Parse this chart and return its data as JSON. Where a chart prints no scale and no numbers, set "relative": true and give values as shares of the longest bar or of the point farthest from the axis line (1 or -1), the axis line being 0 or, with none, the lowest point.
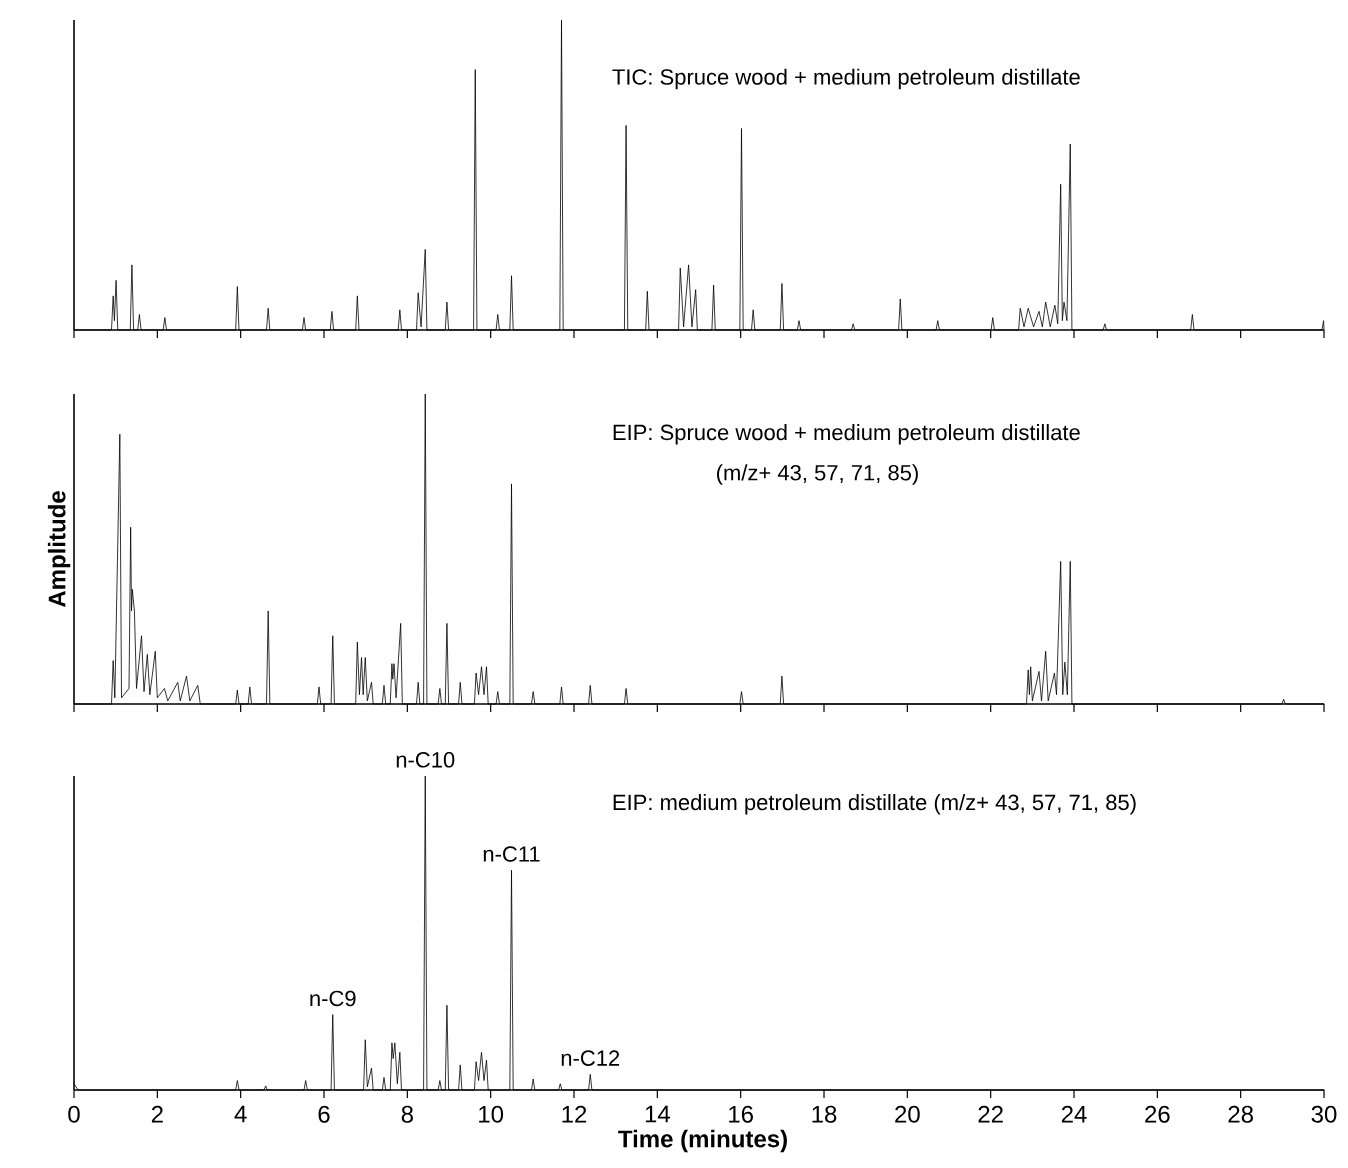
{
  "chart_data": [
    {
      "type": "line",
      "relative": true,
      "title": "TIC: Spruce wood + medium petroleum distillate",
      "xlim": [
        0,
        30
      ],
      "xticks": [
        0,
        2,
        4,
        6,
        8,
        10,
        12,
        14,
        16,
        18,
        20,
        22,
        24,
        26,
        28,
        30
      ],
      "tick_labels": false,
      "series": [
        {
          "color": "#000000",
          "x": [
            0,
            0.9,
            0.94,
            0.97,
            1.01,
            1.05,
            1.35,
            1.39,
            1.43,
            1.53,
            1.57,
            1.61,
            2.14,
            2.18,
            2.22,
            3.88,
            3.92,
            3.96,
            4.62,
            4.66,
            4.7,
            5.48,
            5.52,
            5.56,
            6.15,
            6.19,
            6.23,
            6.76,
            6.8,
            6.84,
            7.78,
            7.82,
            7.86,
            8.22,
            8.26,
            8.33,
            8.43,
            8.47,
            8.91,
            8.95,
            8.99,
            9.59,
            9.63,
            9.67,
            10.13,
            10.17,
            10.21,
            10.46,
            10.5,
            10.54,
            11.66,
            11.7,
            11.74,
            13.21,
            13.25,
            13.29,
            13.72,
            13.76,
            13.8,
            14.51,
            14.55,
            14.63,
            14.75,
            14.83,
            14.92,
            14.96,
            15.31,
            15.35,
            15.39,
            15.98,
            16.02,
            16.06,
            16.26,
            16.3,
            16.34,
            16.95,
            16.99,
            17.03,
            17.36,
            17.4,
            17.44,
            18.66,
            18.7,
            18.74,
            19.79,
            19.83,
            19.87,
            20.69,
            20.73,
            20.77,
            22.01,
            22.05,
            22.09,
            22.67,
            22.71,
            22.8,
            22.9,
            23.03,
            23.16,
            23.24,
            23.32,
            23.43,
            23.54,
            23.61,
            23.68,
            23.72,
            23.76,
            23.83,
            23.91,
            23.95,
            24.7,
            24.74,
            24.78,
            26.8,
            26.84,
            26.88,
            29.95,
            29.99,
            30
          ],
          "values": [
            0,
            0,
            0.11,
            0.03,
            0.16,
            0,
            0,
            0.21,
            0,
            0,
            0.05,
            0,
            0,
            0.04,
            0,
            0,
            0.14,
            0,
            0,
            0.07,
            0,
            0,
            0.04,
            0,
            0,
            0.06,
            0,
            0,
            0.11,
            0,
            0,
            0.065,
            0,
            0,
            0.12,
            0.01,
            0.26,
            0,
            0,
            0.09,
            0,
            0,
            0.84,
            0,
            0,
            0.05,
            0,
            0,
            0.175,
            0,
            0,
            1,
            0,
            0,
            0.66,
            0,
            0,
            0.125,
            0,
            0,
            0.2,
            0.01,
            0.21,
            0.01,
            0.13,
            0,
            0,
            0.145,
            0,
            0,
            0.65,
            0,
            0,
            0.065,
            0,
            0,
            0.15,
            0,
            0,
            0.03,
            0,
            0,
            0.02,
            0,
            0,
            0.1,
            0,
            0,
            0.03,
            0,
            0,
            0.04,
            0,
            0,
            0.07,
            0.01,
            0.07,
            0.01,
            0.06,
            0.01,
            0.09,
            0.01,
            0.08,
            0.02,
            0.47,
            0.03,
            0.09,
            0.03,
            0.6,
            0,
            0,
            0.02,
            0,
            0,
            0.05,
            0,
            0,
            0.03,
            0
          ]
        }
      ]
    },
    {
      "type": "line",
      "relative": true,
      "title": "EIP: Spruce wood + medium petroleum distillate",
      "subtitle": "(m/z+ 43, 57, 71, 85)",
      "ylabel": "Amplitude",
      "xlim": [
        0,
        30
      ],
      "xticks": [
        0,
        2,
        4,
        6,
        8,
        10,
        12,
        14,
        16,
        18,
        20,
        22,
        24,
        26,
        28,
        30
      ],
      "tick_labels": false,
      "series": [
        {
          "color": "#000000",
          "x": [
            0,
            0.9,
            0.94,
            0.98,
            1.1,
            1.14,
            1.32,
            1.36,
            1.38,
            1.4,
            1.45,
            1.5,
            1.62,
            1.68,
            1.76,
            1.82,
            1.95,
            2.0,
            2.17,
            2.25,
            2.49,
            2.55,
            2.7,
            2.78,
            2.97,
            3.03,
            3.88,
            3.92,
            3.96,
            4.18,
            4.22,
            4.26,
            4.62,
            4.66,
            4.7,
            5.84,
            5.88,
            5.92,
            6.17,
            6.21,
            6.25,
            6.76,
            6.8,
            6.85,
            6.9,
            6.94,
            6.99,
            7.04,
            7.14,
            7.18,
            7.4,
            7.44,
            7.48,
            7.59,
            7.63,
            7.65,
            7.68,
            7.73,
            7.84,
            7.88,
            8.22,
            8.26,
            8.3,
            8.39,
            8.43,
            8.47,
            8.74,
            8.78,
            8.82,
            8.91,
            8.95,
            8.99,
            9.23,
            9.27,
            9.31,
            9.61,
            9.65,
            9.71,
            9.78,
            9.84,
            9.9,
            9.94,
            10.13,
            10.17,
            10.21,
            10.46,
            10.5,
            10.54,
            10.98,
            11.02,
            11.06,
            11.66,
            11.7,
            11.74,
            12.35,
            12.39,
            12.43,
            13.21,
            13.25,
            13.29,
            15.98,
            16.02,
            16.06,
            16.95,
            16.99,
            17.03,
            22.86,
            22.9,
            22.93,
            22.96,
            23.0,
            23.16,
            23.22,
            23.32,
            23.38,
            23.53,
            23.58,
            23.68,
            23.73,
            23.78,
            23.84,
            23.91,
            23.95,
            28.99,
            29.03,
            29.07,
            30
          ],
          "values": [
            0,
            0,
            0.14,
            0.02,
            0.87,
            0.02,
            0.05,
            0.57,
            0.3,
            0.37,
            0.3,
            0.05,
            0.22,
            0.04,
            0.16,
            0.03,
            0.17,
            0.02,
            0.05,
            0.01,
            0.07,
            0.01,
            0.09,
            0.01,
            0.06,
            0,
            0,
            0.045,
            0,
            0,
            0.055,
            0,
            0,
            0.3,
            0,
            0,
            0.055,
            0,
            0,
            0.22,
            0,
            0,
            0.2,
            0.03,
            0.15,
            0.03,
            0.15,
            0.01,
            0.07,
            0,
            0,
            0.06,
            0,
            0,
            0.13,
            0.08,
            0.13,
            0.02,
            0.26,
            0,
            0,
            0.07,
            0,
            0,
            1,
            0,
            0,
            0.05,
            0,
            0,
            0.26,
            0,
            0,
            0.07,
            0,
            0,
            0.1,
            0.03,
            0.12,
            0.03,
            0.12,
            0,
            0,
            0.04,
            0,
            0,
            0.71,
            0,
            0,
            0.04,
            0,
            0,
            0.055,
            0,
            0,
            0.06,
            0,
            0,
            0.05,
            0,
            0,
            0.04,
            0,
            0,
            0.09,
            0,
            0,
            0.11,
            0.03,
            0.12,
            0.01,
            0.105,
            0.01,
            0.17,
            0.01,
            0.1,
            0.03,
            0.46,
            0.03,
            0.135,
            0.03,
            0.46,
            0,
            0,
            0.015,
            0,
            0
          ]
        }
      ]
    },
    {
      "type": "line",
      "relative": true,
      "title": "EIP: medium petroleum distillate (m/z+ 43, 57, 71, 85)",
      "xlabel": "Time (minutes)",
      "xlim": [
        0,
        30
      ],
      "xticks": [
        0,
        2,
        4,
        6,
        8,
        10,
        12,
        14,
        16,
        18,
        20,
        22,
        24,
        26,
        28,
        30
      ],
      "tick_labels": "x",
      "annotations": [
        {
          "text": "n-C9",
          "x": 6.21,
          "y": 0.24
        },
        {
          "text": "n-C10",
          "x": 8.43,
          "y": 1
        },
        {
          "text": "n-C11",
          "x": 10.5,
          "y": 0.7
        },
        {
          "text": "n-C12",
          "x": 12.39,
          "y": 0.05
        }
      ],
      "series": [
        {
          "color": "#000000",
          "x": [
            0,
            0.1,
            3.88,
            3.92,
            3.96,
            4.56,
            4.6,
            4.64,
            5.52,
            5.56,
            5.6,
            6.17,
            6.21,
            6.25,
            6.95,
            6.99,
            7.04,
            7.14,
            7.18,
            7.4,
            7.44,
            7.48,
            7.59,
            7.63,
            7.66,
            7.7,
            7.76,
            7.82,
            7.86,
            8.39,
            8.43,
            8.47,
            8.74,
            8.78,
            8.82,
            8.91,
            8.95,
            8.99,
            9.23,
            9.27,
            9.31,
            9.61,
            9.65,
            9.71,
            9.78,
            9.84,
            9.9,
            9.94,
            10.46,
            10.5,
            10.54,
            10.98,
            11.02,
            11.06,
            11.63,
            11.67,
            11.71,
            12.35,
            12.39,
            12.43,
            30
          ],
          "values": [
            0.02,
            0,
            0,
            0.03,
            0,
            0,
            0.013,
            0,
            0,
            0.03,
            0,
            0,
            0.24,
            0,
            0,
            0.16,
            0.01,
            0.07,
            0,
            0,
            0.04,
            0,
            0,
            0.15,
            0.1,
            0.15,
            0.02,
            0.12,
            0,
            0,
            1,
            0,
            0,
            0.03,
            0,
            0,
            0.27,
            0,
            0,
            0.08,
            0,
            0,
            0.09,
            0.03,
            0.12,
            0.03,
            0.095,
            0,
            0,
            0.7,
            0,
            0,
            0.035,
            0,
            0,
            0.02,
            0,
            0,
            0.05,
            0,
            0
          ]
        }
      ]
    }
  ]
}
